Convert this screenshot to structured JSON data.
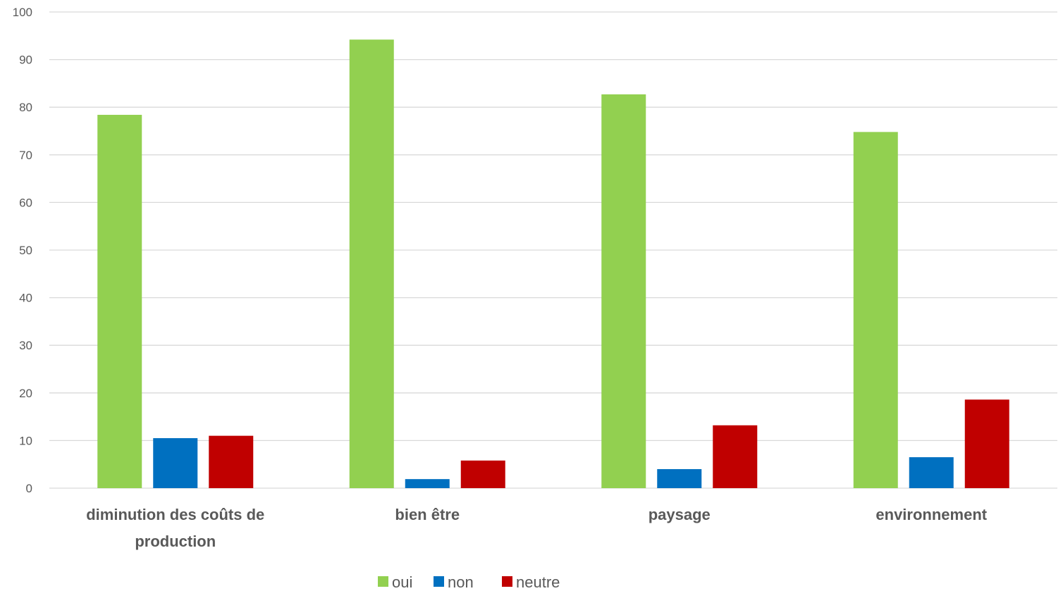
{
  "chart_data": {
    "type": "bar",
    "title": "",
    "xlabel": "",
    "ylabel": "",
    "ylim": [
      0,
      100
    ],
    "yticks": [
      0,
      10,
      20,
      30,
      40,
      50,
      60,
      70,
      80,
      90,
      100
    ],
    "grid": true,
    "legend_position": "bottom",
    "categories": [
      [
        "diminution des coûts de",
        "production"
      ],
      [
        "bien être"
      ],
      [
        "paysage"
      ],
      [
        "environnement"
      ]
    ],
    "series": [
      {
        "name": "oui",
        "color": "#92d050",
        "values": [
          78.4,
          94.2,
          82.7,
          74.8
        ]
      },
      {
        "name": "non",
        "color": "#0070c0",
        "values": [
          10.5,
          1.9,
          4.0,
          6.5
        ]
      },
      {
        "name": "neutre",
        "color": "#c00000",
        "values": [
          11.0,
          5.8,
          13.2,
          18.6
        ]
      }
    ]
  }
}
